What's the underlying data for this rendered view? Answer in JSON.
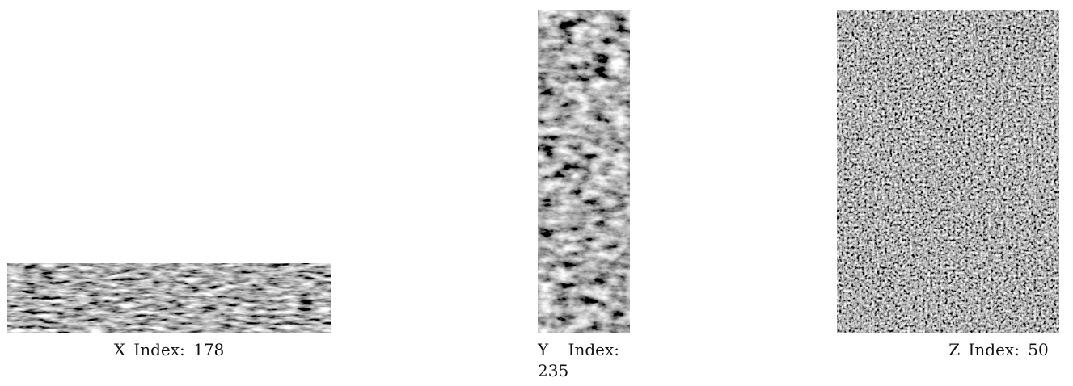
{
  "panels": [
    {
      "id": "x",
      "caption_label": "X Index:",
      "caption_value": "178",
      "texture": {
        "scale": 0.18,
        "octaves": 3,
        "brightness": 0.35,
        "contrast": 1.6,
        "stretch": [
          1,
          4
        ],
        "seed": 17
      }
    },
    {
      "id": "y",
      "caption_label": "Y Index:",
      "caption_value": "235",
      "texture": {
        "scale": 0.05,
        "octaves": 4,
        "brightness": 0.28,
        "contrast": 1.8,
        "stretch": [
          3,
          1
        ],
        "seed": 5
      }
    },
    {
      "id": "z",
      "caption_label": "Z Index:",
      "caption_value": "50",
      "texture": {
        "scale": 0.35,
        "octaves": 3,
        "brightness": 0.3,
        "contrast": 1.7,
        "stretch": [
          1,
          1
        ],
        "seed": 29
      }
    }
  ],
  "colors": {
    "background": "#ffffff",
    "texture_dark": "#000000",
    "texture_light": "#ffffff",
    "caption_text": "#111111"
  }
}
